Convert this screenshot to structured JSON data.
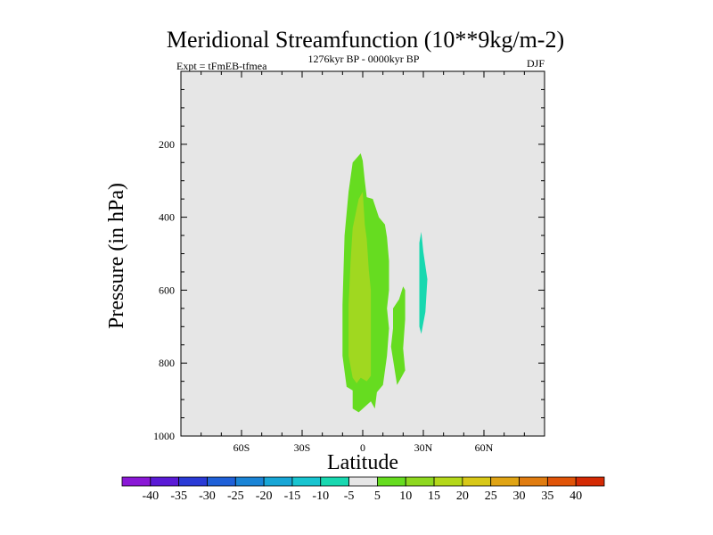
{
  "chart_data": {
    "type": "heatmap",
    "title": "Meridional Streamfunction (10**9kg/m-2)",
    "subtitle_left": "Expt = tFmEB-tfmea",
    "subtitle_center": "1276kyr BP - 0000kyr BP",
    "subtitle_right": "DJF",
    "xlabel": "Latitude",
    "ylabel": "Pressure (in hPa)",
    "xlim": [
      -90,
      90
    ],
    "ylim": [
      1000,
      0
    ],
    "x_ticks": [
      {
        "value": -60,
        "label": "60S"
      },
      {
        "value": -30,
        "label": "30S"
      },
      {
        "value": 0,
        "label": "0"
      },
      {
        "value": 30,
        "label": "30N"
      },
      {
        "value": 60,
        "label": "60N"
      }
    ],
    "y_ticks": [
      {
        "value": 200,
        "label": "200"
      },
      {
        "value": 400,
        "label": "400"
      },
      {
        "value": 600,
        "label": "600"
      },
      {
        "value": 800,
        "label": "800"
      },
      {
        "value": 1000,
        "label": "1000"
      }
    ],
    "background_color": "#e6e6e6",
    "colorbar": {
      "labels": [
        "-40",
        "-35",
        "-30",
        "-25",
        "-20",
        "-15",
        "-10",
        "-5",
        "5",
        "10",
        "15",
        "20",
        "25",
        "30",
        "35",
        "40"
      ],
      "colors": [
        "#8a18d6",
        "#5a1ad6",
        "#2a3ad6",
        "#1f60d8",
        "#1a84d6",
        "#18a6d6",
        "#18c4d0",
        "#18d8b0",
        "#e6e6e6",
        "#66dc20",
        "#8ed820",
        "#b4d81a",
        "#d8c818",
        "#e0a414",
        "#e07c10",
        "#e05408",
        "#d42a04"
      ]
    },
    "contours": [
      {
        "level_range": "5-10",
        "color": "#66dc20",
        "points": [
          [
            -8,
            865
          ],
          [
            -10,
            780
          ],
          [
            -10,
            640
          ],
          [
            -9,
            450
          ],
          [
            -7,
            330
          ],
          [
            -5,
            250
          ],
          [
            -1,
            225
          ],
          [
            0,
            245
          ],
          [
            1,
            300
          ],
          [
            2,
            345
          ],
          [
            5,
            350
          ],
          [
            8,
            400
          ],
          [
            11,
            420
          ],
          [
            12,
            455
          ],
          [
            13,
            520
          ],
          [
            13,
            600
          ],
          [
            12,
            650
          ],
          [
            13,
            705
          ],
          [
            12,
            780
          ],
          [
            10,
            860
          ],
          [
            7,
            880
          ],
          [
            6,
            925
          ],
          [
            4,
            905
          ],
          [
            -2,
            935
          ],
          [
            -5,
            925
          ],
          [
            -5,
            875
          ]
        ]
      },
      {
        "level_range": "5-10",
        "color": "#66dc20",
        "points": [
          [
            15,
            705
          ],
          [
            15,
            650
          ],
          [
            18,
            625
          ],
          [
            20,
            590
          ],
          [
            21,
            600
          ],
          [
            21,
            680
          ],
          [
            20,
            760
          ],
          [
            21,
            820
          ],
          [
            19,
            840
          ],
          [
            17,
            860
          ],
          [
            15,
            790
          ],
          [
            14,
            755
          ]
        ]
      },
      {
        "level_range": "10-15",
        "color": "#a0d820",
        "points": [
          [
            -5,
            840
          ],
          [
            -7,
            780
          ],
          [
            -7,
            640
          ],
          [
            -6,
            520
          ],
          [
            -5,
            430
          ],
          [
            -2,
            350
          ],
          [
            0,
            330
          ],
          [
            1,
            420
          ],
          [
            2,
            460
          ],
          [
            3,
            545
          ],
          [
            4,
            600
          ],
          [
            4,
            680
          ],
          [
            4,
            760
          ],
          [
            4,
            835
          ],
          [
            2,
            850
          ],
          [
            -1,
            840
          ],
          [
            -3,
            855
          ]
        ]
      },
      {
        "level_range": "-10--5",
        "color": "#18d8b0",
        "points": [
          [
            29,
            440
          ],
          [
            30,
            495
          ],
          [
            32,
            570
          ],
          [
            31,
            660
          ],
          [
            29,
            720
          ],
          [
            28,
            700
          ],
          [
            28,
            580
          ],
          [
            28,
            470
          ]
        ]
      }
    ]
  }
}
